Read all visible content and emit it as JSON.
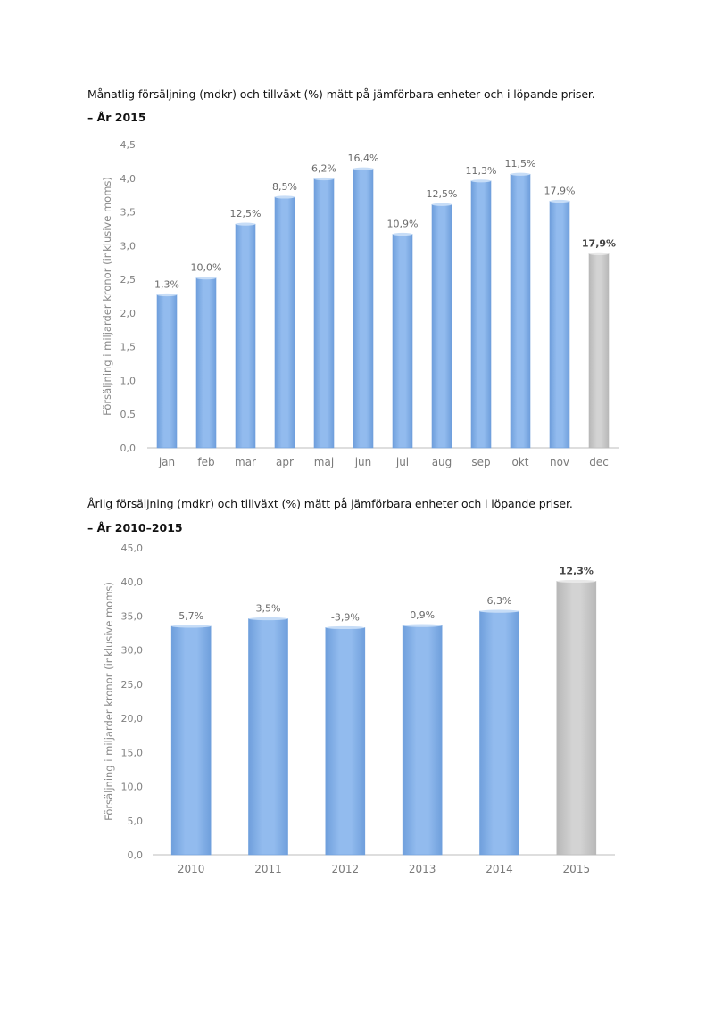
{
  "chart_data": [
    {
      "type": "bar",
      "title": "Månatlig försäljning (mdkr) och tillväxt (%) mätt på jämförbara enheter och i löpande priser.",
      "subtitle": "– År 2015",
      "ylabel": "Försäljning i miljarder kronor (inklusive moms)",
      "xlabel": "",
      "ylim": [
        0,
        4.5
      ],
      "yticks": [
        "0,0",
        "0,5",
        "1,0",
        "1,5",
        "2,0",
        "2,5",
        "3,0",
        "3,5",
        "4,0",
        "4,5"
      ],
      "categories": [
        "jan",
        "feb",
        "mar",
        "apr",
        "maj",
        "jun",
        "jul",
        "aug",
        "sep",
        "okt",
        "nov",
        "dec"
      ],
      "values": [
        2.27,
        2.52,
        3.32,
        3.72,
        3.99,
        4.14,
        3.17,
        3.61,
        3.96,
        4.06,
        3.66,
        2.88
      ],
      "data_labels": [
        "1,3%",
        "10,0%",
        "12,5%",
        "8,5%",
        "6,2%",
        "16,4%",
        "10,9%",
        "12,5%",
        "11,3%",
        "11,5%",
        "17,9%",
        "17,9%"
      ],
      "highlight_index": 11,
      "colors": {
        "bar": "#92bbee",
        "bar_edge": "#6f9fdc",
        "highlight": "#d3d3d3",
        "highlight_edge": "#b8b8b8",
        "axis": "#bdbdbd"
      },
      "grid": false
    },
    {
      "type": "bar",
      "title": "Årlig försäljning (mdkr) och tillväxt (%) mätt på jämförbara enheter och i löpande priser.",
      "subtitle": "– År 2010–2015",
      "ylabel": "Försäljning i miljarder kronor (inklusive moms)",
      "xlabel": "",
      "ylim": [
        0,
        45
      ],
      "yticks": [
        "0,0",
        "5,0",
        "10,0",
        "15,0",
        "20,0",
        "25,0",
        "30,0",
        "35,0",
        "40,0",
        "45,0"
      ],
      "categories": [
        "2010",
        "2011",
        "2012",
        "2013",
        "2014",
        "2015"
      ],
      "values": [
        33.5,
        34.6,
        33.3,
        33.6,
        35.7,
        40.1
      ],
      "data_labels": [
        "5,7%",
        "3,5%",
        "-3,9%",
        "0,9%",
        "6,3%",
        "12,3%"
      ],
      "highlight_index": 5,
      "colors": {
        "bar": "#92bbee",
        "bar_edge": "#6f9fdc",
        "highlight": "#d3d3d3",
        "highlight_edge": "#b8b8b8",
        "axis": "#bdbdbd"
      },
      "grid": false
    }
  ]
}
